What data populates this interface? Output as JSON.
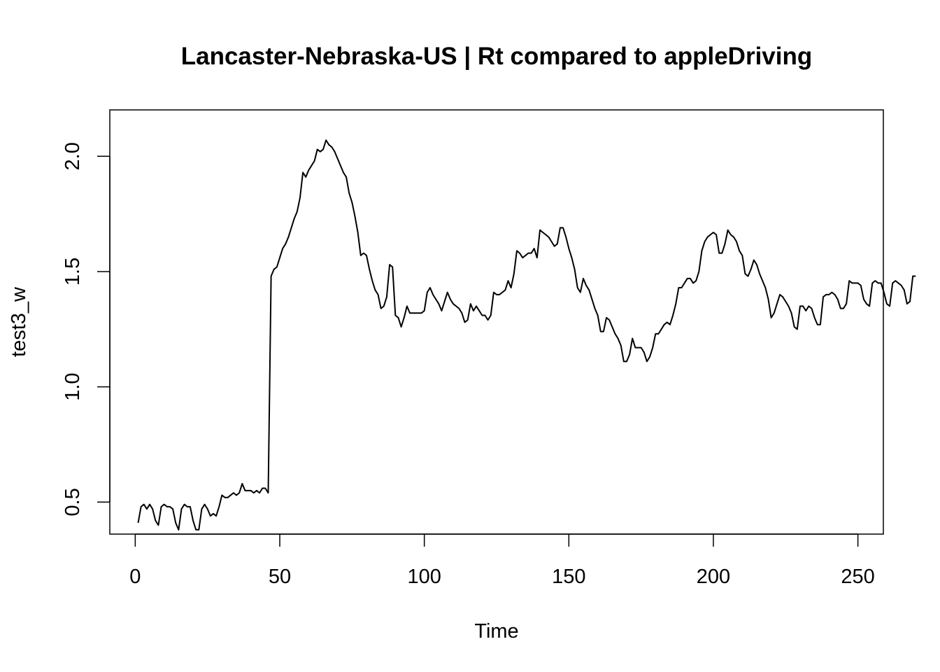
{
  "chart_data": {
    "type": "line",
    "title": "Lancaster-Nebraska-US | Rt compared to appleDriving",
    "xlabel": "Time",
    "ylabel": "test3_w",
    "xlim": [
      -8.8,
      258.8
    ],
    "ylim": [
      0.3612,
      2.2013
    ],
    "x_ticks": [
      0,
      50,
      100,
      150,
      200,
      250
    ],
    "y_ticks": [
      0.5,
      1.0,
      1.5,
      2.0
    ],
    "x_tick_labels": [
      "0",
      "50",
      "100",
      "150",
      "200",
      "250"
    ],
    "y_tick_labels": [
      "0.5",
      "1.0",
      "1.5",
      "2.0"
    ],
    "grid": false,
    "legend": "none",
    "line_color": "#000000",
    "series": [
      {
        "x_start": 1,
        "x_step": 1,
        "values": [
          0.41,
          0.48,
          0.49,
          0.47,
          0.49,
          0.47,
          0.42,
          0.4,
          0.48,
          0.49,
          0.48,
          0.48,
          0.47,
          0.41,
          0.38,
          0.47,
          0.49,
          0.48,
          0.48,
          0.42,
          0.38,
          0.38,
          0.47,
          0.49,
          0.47,
          0.44,
          0.45,
          0.44,
          0.48,
          0.53,
          0.52,
          0.52,
          0.53,
          0.54,
          0.53,
          0.54,
          0.58,
          0.55,
          0.55,
          0.55,
          0.54,
          0.55,
          0.54,
          0.56,
          0.56,
          0.54,
          1.48,
          1.51,
          1.52,
          1.56,
          1.6,
          1.62,
          1.65,
          1.69,
          1.73,
          1.76,
          1.82,
          1.93,
          1.91,
          1.94,
          1.96,
          1.98,
          2.03,
          2.02,
          2.03,
          2.07,
          2.05,
          2.04,
          2.02,
          1.99,
          1.96,
          1.93,
          1.91,
          1.84,
          1.8,
          1.74,
          1.67,
          1.57,
          1.58,
          1.57,
          1.51,
          1.46,
          1.42,
          1.4,
          1.34,
          1.35,
          1.39,
          1.53,
          1.52,
          1.31,
          1.3,
          1.26,
          1.3,
          1.35,
          1.32,
          1.32,
          1.32,
          1.32,
          1.32,
          1.33,
          1.41,
          1.43,
          1.4,
          1.38,
          1.36,
          1.33,
          1.37,
          1.41,
          1.38,
          1.36,
          1.35,
          1.34,
          1.32,
          1.28,
          1.29,
          1.36,
          1.33,
          1.35,
          1.33,
          1.31,
          1.31,
          1.29,
          1.31,
          1.41,
          1.4,
          1.4,
          1.41,
          1.42,
          1.46,
          1.43,
          1.49,
          1.59,
          1.58,
          1.56,
          1.57,
          1.58,
          1.58,
          1.6,
          1.56,
          1.68,
          1.67,
          1.66,
          1.65,
          1.63,
          1.61,
          1.62,
          1.69,
          1.69,
          1.65,
          1.6,
          1.56,
          1.51,
          1.43,
          1.41,
          1.47,
          1.44,
          1.42,
          1.38,
          1.34,
          1.31,
          1.24,
          1.24,
          1.3,
          1.29,
          1.26,
          1.23,
          1.21,
          1.18,
          1.11,
          1.11,
          1.14,
          1.21,
          1.17,
          1.17,
          1.17,
          1.15,
          1.11,
          1.13,
          1.17,
          1.23,
          1.23,
          1.25,
          1.27,
          1.28,
          1.27,
          1.31,
          1.36,
          1.43,
          1.43,
          1.45,
          1.47,
          1.47,
          1.45,
          1.46,
          1.5,
          1.59,
          1.63,
          1.65,
          1.66,
          1.67,
          1.66,
          1.58,
          1.58,
          1.62,
          1.68,
          1.66,
          1.65,
          1.63,
          1.59,
          1.57,
          1.49,
          1.48,
          1.51,
          1.55,
          1.53,
          1.49,
          1.46,
          1.43,
          1.38,
          1.3,
          1.32,
          1.36,
          1.4,
          1.39,
          1.37,
          1.35,
          1.32,
          1.26,
          1.25,
          1.35,
          1.35,
          1.33,
          1.35,
          1.34,
          1.3,
          1.27,
          1.27,
          1.39,
          1.4,
          1.4,
          1.41,
          1.4,
          1.38,
          1.34,
          1.34,
          1.36,
          1.46,
          1.45,
          1.45,
          1.45,
          1.44,
          1.38,
          1.36,
          1.35,
          1.45,
          1.46,
          1.45,
          1.45,
          1.41,
          1.36,
          1.35,
          1.45,
          1.46,
          1.45,
          1.44,
          1.42,
          1.36,
          1.37,
          1.48,
          1.48
        ]
      }
    ]
  }
}
